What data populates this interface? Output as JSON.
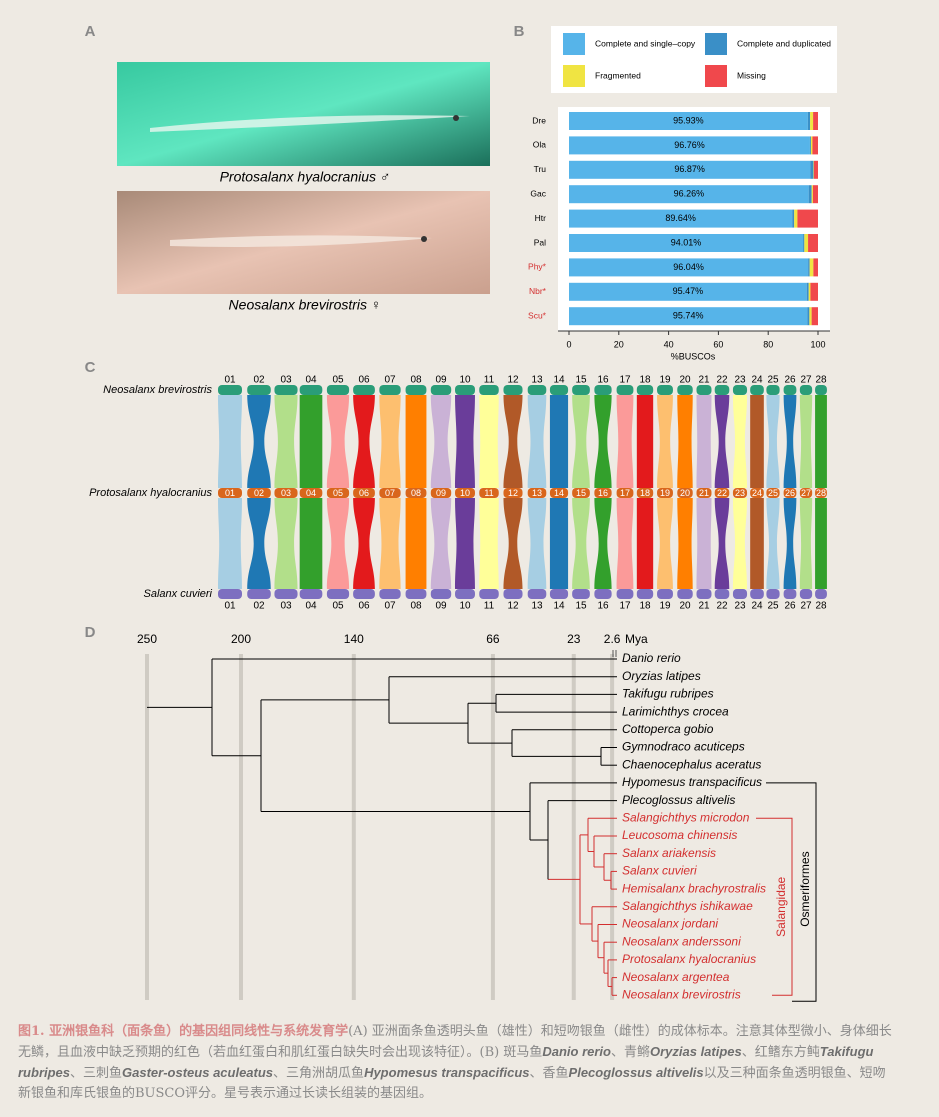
{
  "panels": [
    "A",
    "B",
    "C",
    "D"
  ],
  "panel_a": {
    "captions": [
      "Protosalanx hyalocranius ♂",
      "Neosalanx brevirostris ♀"
    ]
  },
  "chart_data": {
    "type": "stacked-bar-horizontal",
    "categories": [
      "Dre",
      "Ola",
      "Tru",
      "Gac",
      "Htr",
      "Pal",
      "Phy*",
      "Nbr*",
      "Scu*"
    ],
    "category_colors": [
      "#000000",
      "#000000",
      "#000000",
      "#000000",
      "#000000",
      "#000000",
      "#d32f2f",
      "#d32f2f",
      "#d32f2f"
    ],
    "series": [
      {
        "name": "Complete and single–copy",
        "color": "#56b4e9",
        "values": [
          95.93,
          96.76,
          96.87,
          96.26,
          89.64,
          94.01,
          96.04,
          95.47,
          95.74
        ],
        "value_labels": [
          "95.93%",
          "96.76%",
          "96.87%",
          "96.26%",
          "89.64%",
          "94.01%",
          "96.04%",
          "95.47%",
          "95.74%"
        ]
      },
      {
        "name": "Complete and duplicated",
        "color": "#3a8fc7",
        "values": [
          0.9,
          0.4,
          1.3,
          1.2,
          0.8,
          0.5,
          0.6,
          0.8,
          0.8
        ]
      },
      {
        "name": "Fragmented",
        "color": "#f0e442",
        "values": [
          1.2,
          0.6,
          0.2,
          0.5,
          1.3,
          1.5,
          1.5,
          0.7,
          0.9
        ]
      },
      {
        "name": "Missing",
        "color": "#f0484c",
        "values": [
          1.97,
          2.24,
          1.63,
          2.04,
          8.26,
          3.99,
          1.86,
          3.03,
          2.56
        ]
      }
    ],
    "xlim": [
      0,
      100
    ],
    "xticks": [
      0,
      20,
      40,
      60,
      80,
      100
    ],
    "xlabel": "%BUSCOs"
  },
  "synteny": {
    "genomes": [
      "Neosalanx brevirostris",
      "Protosalanx hyalocranius",
      "Salanx cuvieri"
    ],
    "genome_colors": [
      "#2a9d78",
      "#d9661c",
      "#7d6fc0"
    ],
    "chromosomes": [
      "01",
      "02",
      "03",
      "04",
      "05",
      "06",
      "07",
      "08",
      "09",
      "10",
      "11",
      "12",
      "13",
      "14",
      "15",
      "16",
      "17",
      "18",
      "19",
      "20",
      "21",
      "22",
      "23",
      "24",
      "25",
      "26",
      "27",
      "28"
    ],
    "palette": [
      "#a6cee3",
      "#1f78b4",
      "#b2df8a",
      "#33a02c",
      "#fb9a99",
      "#e31a1c",
      "#fdbf6f",
      "#ff7f00",
      "#cab2d6",
      "#6a3d9a",
      "#ffff99",
      "#b15928"
    ]
  },
  "tree": {
    "ticks": [
      250,
      200,
      140,
      66,
      23,
      2.6
    ],
    "unit": "Mya",
    "xlim": [
      250,
      0
    ],
    "taxa": [
      "Danio rerio",
      "Oryzias latipes",
      "Takifugu rubripes",
      "Larimichthys crocea",
      "Cottoperca gobio",
      "Gymnodraco acuticeps",
      "Chaenocephalus aceratus",
      "Hypomesus transpacificus",
      "Plecoglossus altivelis",
      "Salangichthys microdon",
      "Leucosoma chinensis",
      "Salanx ariakensis",
      "Salanx cuvieri",
      "Hemisalanx brachyrostralis",
      "Salangichthys ishikawae",
      "Neosalanx jordani",
      "Neosalanx anderssoni",
      "Protosalanx hyalocranius",
      "Neosalanx argentea",
      "Neosalanx brevirostris"
    ],
    "clades": [
      {
        "label": "Salangidae",
        "color": "#d32f2f"
      },
      {
        "label": "Osmeriformes",
        "color": "#000000"
      }
    ]
  },
  "caption": {
    "title": "图1. 亚洲银鱼科（面条鱼）的基因组同线性与系统发育学",
    "segments": [
      "(A) 亚洲面条鱼透明头鱼（雄性）和短吻银鱼（雌性）的成体标本。注意其体型微小、身体细长无鳞，且血液中缺乏预期的红色（若血红蛋白和肌红蛋白缺失时会出现该特征）。(B) 斑马鱼",
      "Danio rerio",
      "、青鳉",
      "Oryzias latipes",
      "、红鳍东方鲀",
      "Takifugu rubripes",
      "、三刺鱼",
      "Gaster-osteus aculeatus",
      "、三角洲胡瓜鱼",
      "Hypomesus transpacificus",
      "、香鱼",
      "Plecoglossus altivelis",
      "以及三种面条鱼透明银鱼、短吻新银鱼和库氏银鱼的BUSCO评分。星号表示通过长读长组装的基因组。"
    ]
  }
}
